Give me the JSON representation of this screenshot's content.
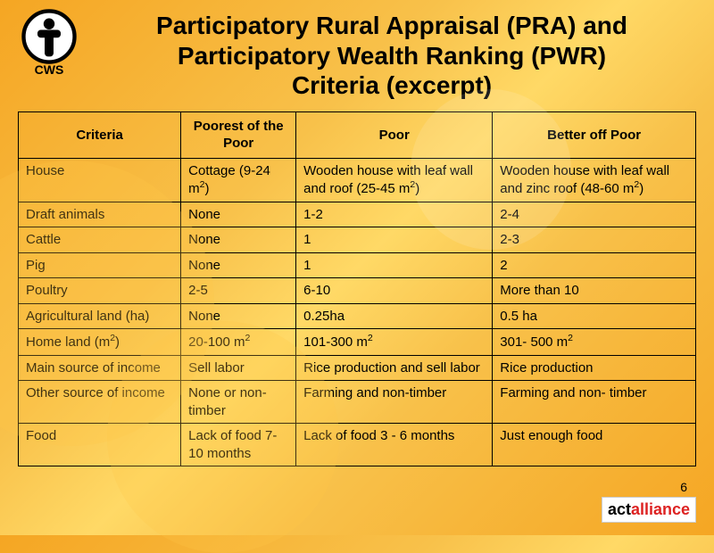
{
  "logo_label": "CWS",
  "title_line1": "Participatory Rural Appraisal (PRA) and",
  "title_line2": "Participatory Wealth Ranking (PWR)",
  "title_line3": "Criteria (excerpt)",
  "headers": [
    "Criteria",
    "Poorest of the Poor",
    "Poor",
    "Better off Poor"
  ],
  "rows": [
    {
      "criteria": "House",
      "c1": "Cottage (9-24 m²)",
      "c2": "Wooden house with leaf wall and roof (25-45 m²)",
      "c3": "Wooden house with leaf wall and zinc roof (48-60 m²)"
    },
    {
      "criteria": "Draft animals",
      "c1": "None",
      "c2": "1-2",
      "c3": "2-4"
    },
    {
      "criteria": "Cattle",
      "c1": "None",
      "c2": "1",
      "c3": "2-3"
    },
    {
      "criteria": "Pig",
      "c1": "None",
      "c2": "1",
      "c3": "2"
    },
    {
      "criteria": "Poultry",
      "c1": "2-5",
      "c2": "6-10",
      "c3": "More than 10"
    },
    {
      "criteria": "Agricultural land (ha)",
      "c1": "None",
      "c2": "0.25ha",
      "c3": "0.5 ha"
    },
    {
      "criteria": "Home land (m2)",
      "c1": "20-100 m²",
      "c2": "101-300 m²",
      "c3": "301- 500 m²"
    },
    {
      "criteria": "Main source of income",
      "c1": "Sell labor",
      "c2": "Rice production and sell labor",
      "c3": "Rice production"
    },
    {
      "criteria": "Other source of income",
      "c1": "None or non-timber",
      "c2": "Farming and non-timber",
      "c3": "Farming and non- timber"
    },
    {
      "criteria": "Food",
      "c1": "Lack of food 7-10 months",
      "c2": "Lack of food 3 - 6 months",
      "c3": "Just enough food"
    }
  ],
  "page_number": "6",
  "alliance_act": "act",
  "alliance_all": "alliance",
  "colors": {
    "bg_grad_a": "#f5a623",
    "bg_grad_b": "#ffd966",
    "border": "#000000",
    "text": "#000000",
    "alliance_red": "#d22"
  },
  "fontsize": {
    "title": 28,
    "table": 15
  }
}
